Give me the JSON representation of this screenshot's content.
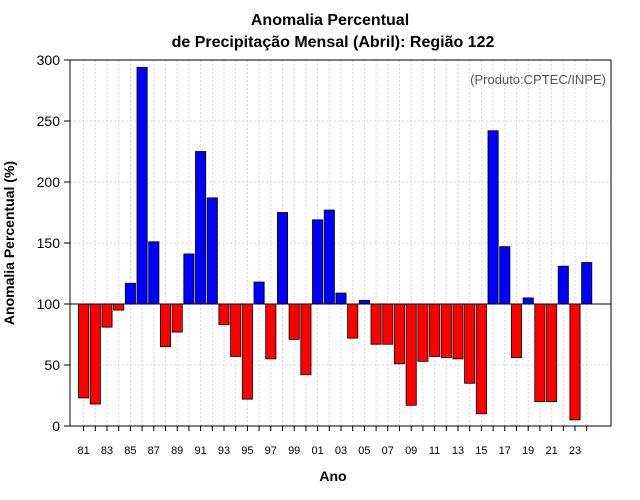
{
  "chart_data": {
    "type": "bar",
    "title_line1": "Anomalia Percentual",
    "title_line2": "de Precipitação Mensal (Abril): Região 122",
    "source_note": "(Produto:CPTEC/INPE)",
    "xlabel": "Ano",
    "ylabel": "Anomalia Percentual (%)",
    "ylim": [
      0,
      300
    ],
    "yticks": [
      0,
      50,
      100,
      150,
      200,
      250,
      300
    ],
    "baseline": 100,
    "grid": true,
    "colors": {
      "above": "#0000ff",
      "below": "#ff0000",
      "grid": "#d9d9d9"
    },
    "categories": [
      "81",
      "82",
      "83",
      "84",
      "85",
      "86",
      "87",
      "88",
      "89",
      "90",
      "91",
      "92",
      "93",
      "94",
      "95",
      "96",
      "97",
      "98",
      "99",
      "00",
      "01",
      "02",
      "03",
      "04",
      "05",
      "06",
      "07",
      "08",
      "09",
      "10",
      "11",
      "12",
      "13",
      "14",
      "15",
      "16",
      "17",
      "18",
      "19",
      "20",
      "21",
      "22",
      "23",
      "24"
    ],
    "xtick_labels": [
      "81",
      "83",
      "85",
      "87",
      "89",
      "91",
      "93",
      "95",
      "97",
      "99",
      "01",
      "03",
      "05",
      "07",
      "09",
      "11",
      "13",
      "15",
      "17",
      "19",
      "21",
      "23"
    ],
    "values": [
      23,
      18,
      81,
      95,
      117,
      294,
      151,
      65,
      77,
      141,
      225,
      187,
      83,
      57,
      22,
      118,
      55,
      175,
      71,
      42,
      169,
      177,
      109,
      72,
      103,
      67,
      67,
      51,
      17,
      53,
      57,
      56,
      55,
      35,
      10,
      242,
      147,
      56,
      105,
      20,
      20,
      131,
      5,
      134
    ]
  }
}
